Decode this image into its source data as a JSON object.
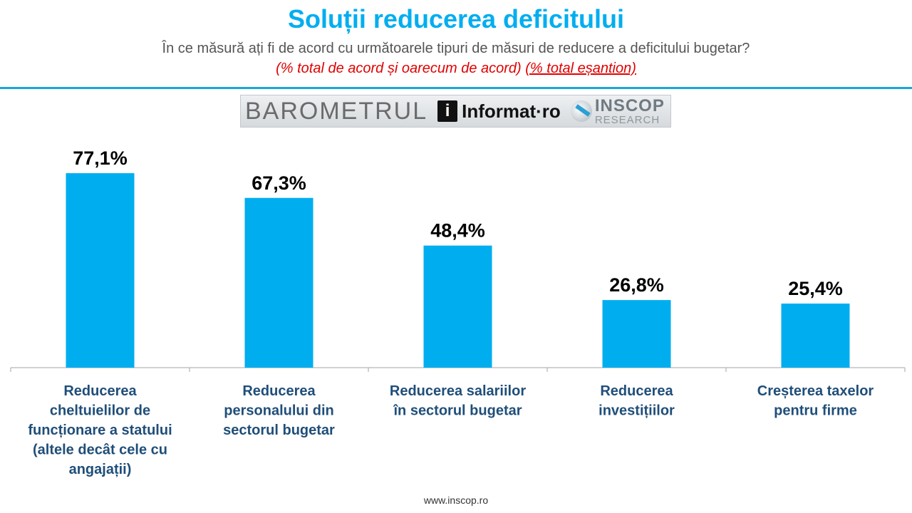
{
  "header": {
    "title": "Soluții reducerea deficitului",
    "subtitle": "În ce măsură ați fi de acord cu următoarele tipuri de măsuri de reducere a deficitului bugetar?",
    "note_part1": "(% total de acord și oarecum de acord)",
    "note_part2": "(% total eșantion)"
  },
  "logos": {
    "barometer": "BAROMETRUL",
    "informat_mark": "i",
    "informat": "Informat·ro",
    "inscop_top": "INSCOP",
    "inscop_bottom": "RESEARCH"
  },
  "colors": {
    "title": "#00aeef",
    "bar": "#00aeef",
    "category_label": "#1f4e79",
    "note": "#e00000"
  },
  "chart_data": {
    "type": "bar",
    "categories": [
      "Reducerea cheltuielilor de funcționare a statului (altele decât cele cu angajații)",
      "Reducerea personalului din sectorul bugetar",
      "Reducerea salariilor în sectorul bugetar",
      "Reducerea investițiilor",
      "Creșterea taxelor pentru firme"
    ],
    "category_lines": [
      [
        "Reducerea",
        "cheltuielilor de",
        "funcționare a statului",
        "(altele decât cele cu",
        "angajații)"
      ],
      [
        "Reducerea",
        "personalului din",
        "sectorul bugetar"
      ],
      [
        "Reducerea salariilor",
        "în sectorul bugetar"
      ],
      [
        "Reducerea",
        "investițiilor"
      ],
      [
        "Creșterea taxelor",
        "pentru firme"
      ]
    ],
    "values": [
      77.1,
      67.3,
      48.4,
      26.8,
      25.4
    ],
    "value_labels": [
      "77,1%",
      "67,3%",
      "48,4%",
      "26,8%",
      "25,4%"
    ],
    "ylim": [
      0,
      100
    ],
    "grid": false,
    "legend": "none"
  },
  "footer": {
    "url": "www.inscop.ro"
  }
}
